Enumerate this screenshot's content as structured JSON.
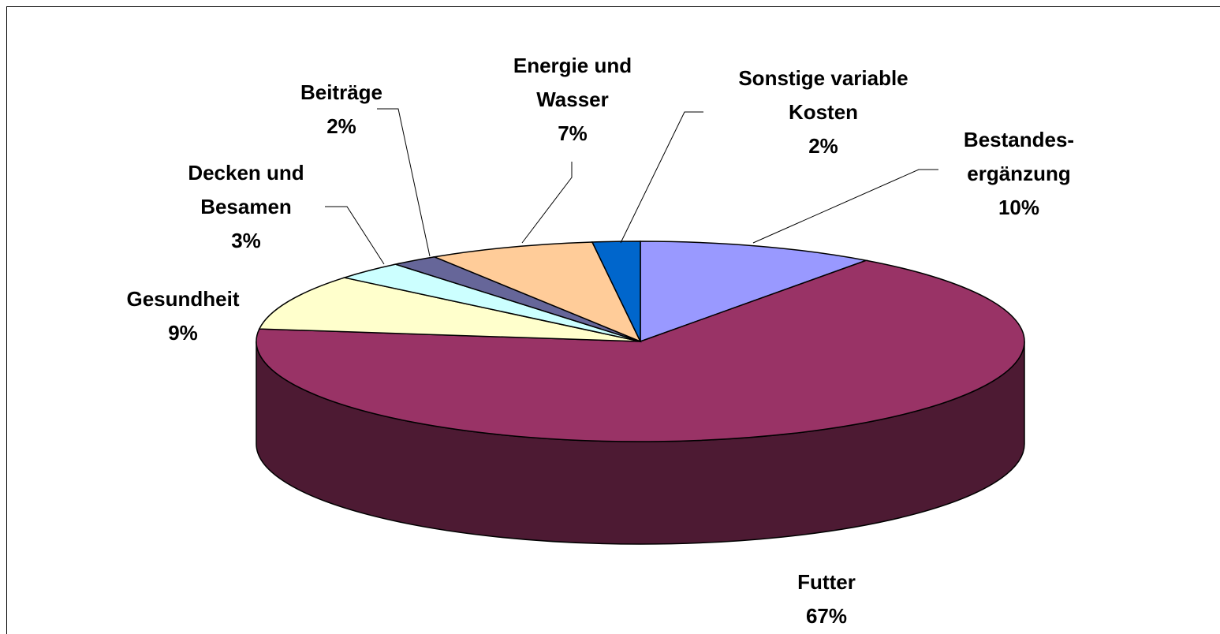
{
  "chart_data": {
    "type": "pie",
    "categories": [
      "Bestandes-\nergänzung",
      "Futter",
      "Gesundheit",
      "Decken und\nBesamen",
      "Beiträge",
      "Energie und\nWasser",
      "Sonstige variable\nKosten"
    ],
    "values": [
      10,
      67,
      9,
      3,
      2,
      7,
      2
    ],
    "value_labels": [
      "10%",
      "67%",
      "9%",
      "3%",
      "2%",
      "7%",
      "2%"
    ],
    "colors": [
      "#9999ff",
      "#993366",
      "#ffffcc",
      "#ccffff",
      "#666699",
      "#ffcc99",
      "#0066cc"
    ]
  }
}
